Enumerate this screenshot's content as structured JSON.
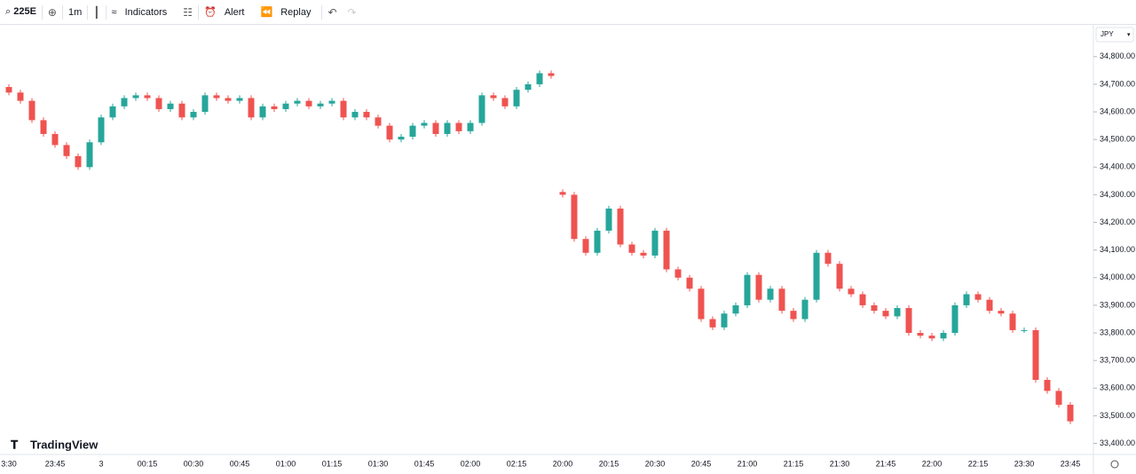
{
  "toolbar": {
    "symbol": "225E",
    "interval": "1m",
    "indicators": "Indicators",
    "alert": "Alert",
    "replay": "Replay"
  },
  "currency": "JPY",
  "watermark": "TradingView",
  "chart_data": {
    "type": "candlestick",
    "up_color": "#26a69a",
    "down_color": "#ef5350",
    "categories": [
      "3:30",
      null,
      null,
      null,
      "23:45",
      null,
      null,
      null,
      "3",
      null,
      null,
      null,
      "00:15",
      null,
      null,
      null,
      "00:30",
      null,
      null,
      null,
      "00:45",
      null,
      null,
      null,
      "01:00",
      null,
      null,
      null,
      "01:15",
      null,
      null,
      null,
      "01:30",
      null,
      null,
      null,
      "01:45",
      null,
      null,
      null,
      "02:00",
      null,
      null,
      null,
      "02:15",
      null,
      null,
      null,
      "20:00",
      null,
      null,
      null,
      "20:15",
      null,
      null,
      null,
      "20:30",
      null,
      null,
      null,
      "20:45",
      null,
      null,
      null,
      "21:00",
      null,
      null,
      null,
      "21:15",
      null,
      null,
      null,
      "21:30",
      null,
      null,
      null,
      "21:45",
      null,
      null,
      null,
      "22:00",
      null,
      null,
      null,
      "22:15",
      null,
      null,
      null,
      "23:30",
      null,
      null,
      null,
      "23:45"
    ],
    "open": [
      34690,
      34670,
      34640,
      34570,
      34520,
      34480,
      34440,
      34400,
      34490,
      34580,
      34620,
      34650,
      34660,
      34650,
      34610,
      34630,
      34580,
      34600,
      34660,
      34650,
      34640,
      34650,
      34580,
      34620,
      34610,
      34630,
      34640,
      34620,
      34630,
      34640,
      34580,
      34600,
      34580,
      34550,
      34500,
      34510,
      34550,
      34560,
      34520,
      34560,
      34530,
      34560,
      34660,
      34650,
      34620,
      34680,
      34700,
      34740,
      34310,
      34300,
      34140,
      34090,
      34170,
      34250,
      34120,
      34090,
      34080,
      34170,
      34030,
      34000,
      33960,
      33850,
      33820,
      33870,
      33900,
      34010,
      33920,
      33960,
      33880,
      33850,
      33920,
      34090,
      34050,
      33960,
      33940,
      33900,
      33880,
      33860,
      33890,
      33800,
      33790,
      33780,
      33800,
      33900,
      33940,
      33920,
      33880,
      33870,
      33810,
      33810,
      33630,
      33590,
      33540
    ],
    "high": [
      34700,
      34680,
      34650,
      34580,
      34530,
      34490,
      34450,
      34500,
      34590,
      34630,
      34660,
      34670,
      34670,
      34660,
      34640,
      34640,
      34610,
      34670,
      34670,
      34660,
      34660,
      34660,
      34630,
      34630,
      34640,
      34650,
      34650,
      34640,
      34650,
      34650,
      34610,
      34610,
      34590,
      34560,
      34520,
      34560,
      34570,
      34570,
      34570,
      34570,
      34570,
      34670,
      34670,
      34660,
      34690,
      34710,
      34750,
      34750,
      34320,
      34310,
      34150,
      34180,
      34260,
      34260,
      34130,
      34100,
      34180,
      34180,
      34040,
      34010,
      33970,
      33860,
      33880,
      33910,
      34020,
      34020,
      33970,
      33970,
      33890,
      33930,
      34100,
      34100,
      34060,
      33970,
      33950,
      33910,
      33890,
      33900,
      33900,
      33810,
      33800,
      33810,
      33910,
      33950,
      33950,
      33930,
      33890,
      33880,
      33820,
      33820,
      33640,
      33600,
      33550
    ],
    "low": [
      34660,
      34630,
      34560,
      34510,
      34470,
      34430,
      34390,
      34390,
      34480,
      34570,
      34610,
      34640,
      34640,
      34600,
      34600,
      34570,
      34570,
      34590,
      34640,
      34630,
      34630,
      34570,
      34570,
      34600,
      34600,
      34620,
      34610,
      34610,
      34620,
      34570,
      34570,
      34570,
      34540,
      34490,
      34490,
      34500,
      34540,
      34510,
      34510,
      34520,
      34520,
      34550,
      34640,
      34610,
      34610,
      34670,
      34690,
      34720,
      34290,
      34130,
      34080,
      34080,
      34160,
      34110,
      34080,
      34070,
      34070,
      34020,
      33990,
      33950,
      33840,
      33810,
      33810,
      33860,
      33890,
      33910,
      33910,
      33870,
      33840,
      33840,
      33910,
      34040,
      33950,
      33930,
      33890,
      33870,
      33850,
      33850,
      33790,
      33780,
      33770,
      33770,
      33790,
      33890,
      33910,
      33870,
      33860,
      33800,
      33800,
      33620,
      33580,
      33530,
      33470
    ],
    "close": [
      34670,
      34640,
      34570,
      34520,
      34480,
      34440,
      34400,
      34490,
      34580,
      34620,
      34650,
      34660,
      34650,
      34610,
      34630,
      34580,
      34600,
      34660,
      34650,
      34640,
      34650,
      34580,
      34620,
      34610,
      34630,
      34640,
      34620,
      34630,
      34640,
      34580,
      34600,
      34580,
      34550,
      34500,
      34510,
      34550,
      34560,
      34520,
      34560,
      34530,
      34560,
      34660,
      34650,
      34620,
      34680,
      34700,
      34740,
      34730,
      34300,
      34140,
      34090,
      34170,
      34250,
      34120,
      34090,
      34080,
      34170,
      34030,
      34000,
      33960,
      33850,
      33820,
      33870,
      33900,
      34010,
      33920,
      33960,
      33880,
      33850,
      33920,
      34090,
      34050,
      33960,
      33940,
      33900,
      33880,
      33860,
      33890,
      33800,
      33790,
      33780,
      33800,
      33900,
      33940,
      33920,
      33880,
      33870,
      33810,
      33810,
      33630,
      33590,
      33540,
      33480
    ],
    "ylim": [
      33360,
      34915
    ],
    "yticks": [
      {
        "value": 33400,
        "label": "33,400.00"
      },
      {
        "value": 33500,
        "label": "33,500.00"
      },
      {
        "value": 33600,
        "label": "33,600.00"
      },
      {
        "value": 33700,
        "label": "33,700.00"
      },
      {
        "value": 33800,
        "label": "33,800.00"
      },
      {
        "value": 33900,
        "label": "33,900.00"
      },
      {
        "value": 34000,
        "label": "34,000.00"
      },
      {
        "value": 34100,
        "label": "34,100.00"
      },
      {
        "value": 34200,
        "label": "34,200.00"
      },
      {
        "value": 34300,
        "label": "34,300.00"
      },
      {
        "value": 34400,
        "label": "34,400.00"
      },
      {
        "value": 34500,
        "label": "34,500.00"
      },
      {
        "value": 34600,
        "label": "34,600.00"
      },
      {
        "value": 34700,
        "label": "34,700.00"
      },
      {
        "value": 34800,
        "label": "34,800.00"
      }
    ],
    "grid": false
  }
}
